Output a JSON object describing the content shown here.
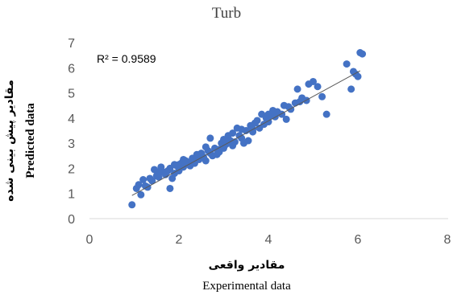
{
  "chart_data": {
    "type": "scatter",
    "title": "Turb",
    "xlabel_fa": "مقادیر واقعی",
    "xlabel": "Experimental data",
    "ylabel_fa": "مقادیر پیش بینی شده",
    "ylabel": "Predicted data",
    "xlim": [
      0,
      8
    ],
    "ylim": [
      0,
      7
    ],
    "xticks": [
      0,
      2,
      4,
      6,
      8
    ],
    "yticks": [
      0,
      1,
      2,
      3,
      4,
      5,
      6,
      7
    ],
    "grid": false,
    "annotation": "R² = 0.9589",
    "marker_color": "#4472C4",
    "trendline_color": "#595959",
    "trendline": {
      "x": [
        0.95,
        6.05
      ],
      "y": [
        0.92,
        5.88
      ]
    },
    "points": [
      [
        0.95,
        0.55
      ],
      [
        1.05,
        1.2
      ],
      [
        1.1,
        1.35
      ],
      [
        1.15,
        0.95
      ],
      [
        1.2,
        1.55
      ],
      [
        1.25,
        1.3
      ],
      [
        1.3,
        1.25
      ],
      [
        1.35,
        1.6
      ],
      [
        1.4,
        1.5
      ],
      [
        1.45,
        1.95
      ],
      [
        1.5,
        1.7
      ],
      [
        1.55,
        1.65
      ],
      [
        1.6,
        2.05
      ],
      [
        1.65,
        1.85
      ],
      [
        1.7,
        1.75
      ],
      [
        1.75,
        1.9
      ],
      [
        1.8,
        1.2
      ],
      [
        1.8,
        2.0
      ],
      [
        1.85,
        1.6
      ],
      [
        1.9,
        2.15
      ],
      [
        1.95,
        2.1
      ],
      [
        2.0,
        1.9
      ],
      [
        2.05,
        2.2
      ],
      [
        2.1,
        2.05
      ],
      [
        2.15,
        2.3
      ],
      [
        2.2,
        2.25
      ],
      [
        2.25,
        2.1
      ],
      [
        2.3,
        2.4
      ],
      [
        2.35,
        2.2
      ],
      [
        2.4,
        2.5
      ],
      [
        2.45,
        2.35
      ],
      [
        2.5,
        2.6
      ],
      [
        2.55,
        2.45
      ],
      [
        2.6,
        2.3
      ],
      [
        2.65,
        2.7
      ],
      [
        2.7,
        3.2
      ],
      [
        2.75,
        2.5
      ],
      [
        2.8,
        2.8
      ],
      [
        2.85,
        2.55
      ],
      [
        2.9,
        2.65
      ],
      [
        2.95,
        3.0
      ],
      [
        3.0,
        2.8
      ],
      [
        3.05,
        2.95
      ],
      [
        3.1,
        3.3
      ],
      [
        3.15,
        3.1
      ],
      [
        3.2,
        2.9
      ],
      [
        3.25,
        3.05
      ],
      [
        3.3,
        3.6
      ],
      [
        3.35,
        3.3
      ],
      [
        3.4,
        3.2
      ],
      [
        3.45,
        3.0
      ],
      [
        3.5,
        3.5
      ],
      [
        3.55,
        3.1
      ],
      [
        3.6,
        3.7
      ],
      [
        3.65,
        3.55
      ],
      [
        3.7,
        3.8
      ],
      [
        3.75,
        3.9
      ],
      [
        3.8,
        3.6
      ],
      [
        3.85,
        4.15
      ],
      [
        3.9,
        3.75
      ],
      [
        3.95,
        4.0
      ],
      [
        4.0,
        3.85
      ],
      [
        4.05,
        4.1
      ],
      [
        4.1,
        4.3
      ],
      [
        4.15,
        4.05
      ],
      [
        4.2,
        4.25
      ],
      [
        4.3,
        4.15
      ],
      [
        4.35,
        4.5
      ],
      [
        4.4,
        3.95
      ],
      [
        4.45,
        4.45
      ],
      [
        4.5,
        4.35
      ],
      [
        4.6,
        4.6
      ],
      [
        4.65,
        5.15
      ],
      [
        4.7,
        4.65
      ],
      [
        4.75,
        4.8
      ],
      [
        4.85,
        4.7
      ],
      [
        4.9,
        5.35
      ],
      [
        5.0,
        5.45
      ],
      [
        5.1,
        5.25
      ],
      [
        5.2,
        4.85
      ],
      [
        5.3,
        4.15
      ],
      [
        5.75,
        6.15
      ],
      [
        5.85,
        5.15
      ],
      [
        5.9,
        5.85
      ],
      [
        5.95,
        5.75
      ],
      [
        6.0,
        5.65
      ],
      [
        6.05,
        6.6
      ],
      [
        6.1,
        6.55
      ],
      [
        2.4,
        2.55
      ],
      [
        2.9,
        2.75
      ],
      [
        3.2,
        3.4
      ],
      [
        1.55,
        1.85
      ],
      [
        2.1,
        2.35
      ],
      [
        2.7,
        2.6
      ],
      [
        3.65,
        3.45
      ],
      [
        4.0,
        4.15
      ],
      [
        2.0,
        2.15
      ],
      [
        3.0,
        3.15
      ],
      [
        2.6,
        2.85
      ],
      [
        1.9,
        1.8
      ],
      [
        3.4,
        3.55
      ]
    ]
  }
}
